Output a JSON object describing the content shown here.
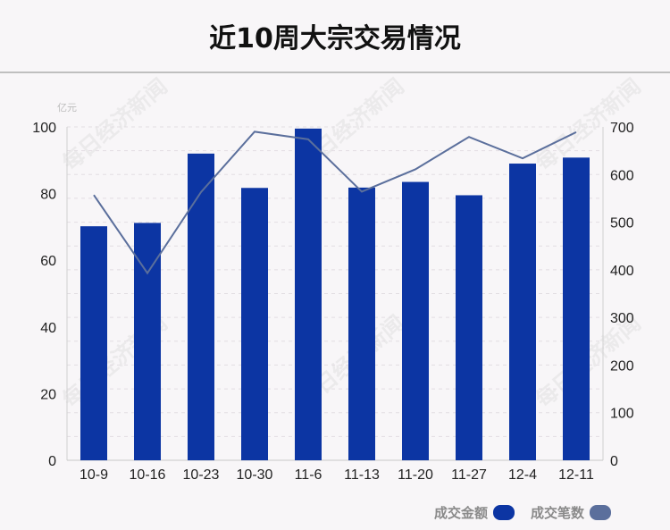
{
  "title": "近10周大宗交易情况",
  "watermark": "每日经济新闻",
  "colors": {
    "bar": "#0c35a3",
    "line": "#5b6f9c",
    "grid": "#e2dde2",
    "axis_text": "#222222",
    "unit_text": "#bdbdbd"
  },
  "legend": [
    {
      "label": "成交金额",
      "color": "#0c35a3"
    },
    {
      "label": "成交笔数",
      "color": "#5b6f9c"
    }
  ],
  "chart_data": {
    "type": "bar+line",
    "categories": [
      "10-9",
      "10-16",
      "10-23",
      "10-30",
      "11-6",
      "11-13",
      "11-20",
      "11-27",
      "12-4",
      "12-11"
    ],
    "left_axis": {
      "unit": "亿元",
      "ylim": [
        0,
        100
      ],
      "ticks": [
        0,
        20,
        40,
        60,
        80,
        100
      ]
    },
    "right_axis": {
      "ylim": [
        0,
        700
      ],
      "ticks": [
        0,
        100,
        200,
        300,
        400,
        500,
        600,
        700
      ]
    },
    "series": [
      {
        "name": "成交金额",
        "type": "bar",
        "axis": "left",
        "values": [
          70.2,
          71.2,
          92.0,
          81.7,
          99.5,
          81.8,
          83.5,
          79.5,
          89.0,
          90.8
        ]
      },
      {
        "name": "成交笔数",
        "type": "line",
        "axis": "right",
        "values": [
          557,
          393,
          563,
          690,
          674,
          564,
          611,
          679,
          634,
          689
        ]
      }
    ],
    "grid": true,
    "legend_position": "bottom-right"
  }
}
